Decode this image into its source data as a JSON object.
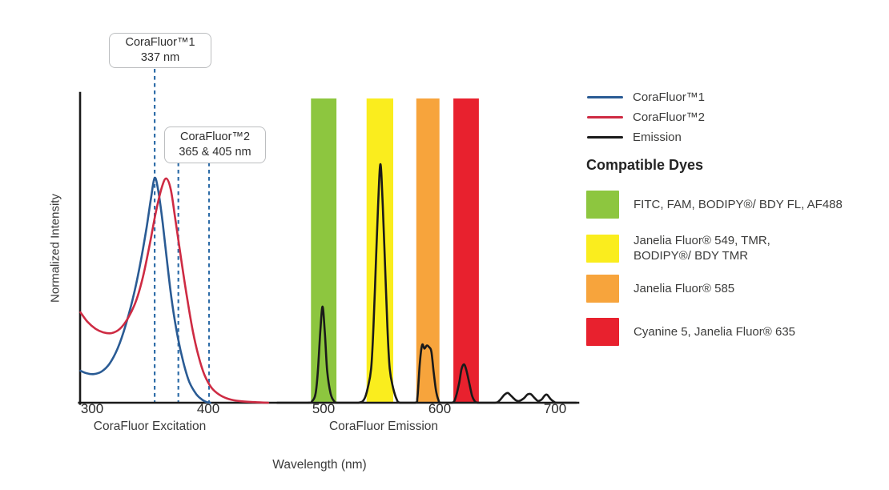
{
  "page": {
    "background": "#ffffff"
  },
  "annotations": {
    "callout1": {
      "line1": "CoraFluor™1",
      "line2": "337 nm"
    },
    "callout2": {
      "line1": "CoraFluor™2",
      "line2": "365 & 405 nm"
    }
  },
  "legend": {
    "items": [
      {
        "label": "CoraFluor™1",
        "color": "#2a5b94"
      },
      {
        "label": "CoraFluor™2",
        "color": "#ce2b43"
      },
      {
        "label": "Emission",
        "color": "#1a1a1a"
      }
    ]
  },
  "compatible_dyes": {
    "heading": "Compatible Dyes",
    "items": [
      {
        "color": "#8dc63f",
        "lines": [
          "FITC, FAM, BODIPY®/ BDY FL, AF488"
        ]
      },
      {
        "color": "#faed1e",
        "lines": [
          "Janelia Fluor® 549, TMR,",
          "BODIPY®/ BDY TMR"
        ]
      },
      {
        "color": "#f7a43c",
        "lines": [
          "Janelia Fluor® 585"
        ]
      },
      {
        "color": "#e8212e",
        "lines": [
          "Cyanine 5, Janelia Fluor® 635"
        ]
      }
    ]
  },
  "chart_data": {
    "type": "line",
    "xlabel": "Wavelength (nm)",
    "ylabel": "Normalized Intensity",
    "x_ticks": [
      300,
      400,
      500,
      600,
      700
    ],
    "xlim": [
      289,
      719
    ],
    "ylim": [
      0,
      1
    ],
    "grid": false,
    "legend_position": "upper right",
    "region_labels": [
      {
        "text": "CoraFluor Excitation",
        "center_nm": 350
      },
      {
        "text": "CoraFluor Emission",
        "center_nm": 552
      }
    ],
    "bands": [
      {
        "name": "green",
        "color": "#8dc63f",
        "range_nm": [
          489,
          511
        ]
      },
      {
        "name": "yellow",
        "color": "#faed1e",
        "range_nm": [
          537,
          560
        ]
      },
      {
        "name": "orange",
        "color": "#f7a43c",
        "range_nm": [
          580,
          600
        ]
      },
      {
        "name": "red",
        "color": "#e8212e",
        "range_nm": [
          612,
          634
        ]
      }
    ],
    "excitation_markers": {
      "labeled_nm": [
        337,
        365,
        405
      ],
      "rendered_nm": [
        354,
        374.5,
        401
      ],
      "color": "#2f6da8"
    },
    "series": [
      {
        "name": "CoraFluor™1",
        "role": "excitation",
        "color": "#2a5b94",
        "points": [
          [
            290,
            0.105
          ],
          [
            295,
            0.097
          ],
          [
            301,
            0.094
          ],
          [
            308,
            0.102
          ],
          [
            315,
            0.128
          ],
          [
            322,
            0.178
          ],
          [
            329,
            0.255
          ],
          [
            336,
            0.355
          ],
          [
            342,
            0.465
          ],
          [
            347,
            0.575
          ],
          [
            351,
            0.675
          ],
          [
            354,
            0.739
          ],
          [
            357,
            0.7
          ],
          [
            361,
            0.59
          ],
          [
            365,
            0.455
          ],
          [
            369,
            0.33
          ],
          [
            374,
            0.215
          ],
          [
            379,
            0.13
          ],
          [
            384,
            0.068
          ],
          [
            390,
            0.028
          ],
          [
            395,
            0.01
          ],
          [
            399,
            0.002
          ],
          [
            402,
            0
          ]
        ]
      },
      {
        "name": "CoraFluor™2",
        "role": "excitation",
        "color": "#ce2b43",
        "points": [
          [
            290,
            0.297
          ],
          [
            296,
            0.266
          ],
          [
            303,
            0.243
          ],
          [
            310,
            0.231
          ],
          [
            317,
            0.229
          ],
          [
            324,
            0.243
          ],
          [
            331,
            0.278
          ],
          [
            338,
            0.335
          ],
          [
            344,
            0.415
          ],
          [
            350,
            0.525
          ],
          [
            355,
            0.625
          ],
          [
            360,
            0.705
          ],
          [
            364,
            0.737
          ],
          [
            368,
            0.7
          ],
          [
            372,
            0.6
          ],
          [
            377,
            0.47
          ],
          [
            382,
            0.345
          ],
          [
            387,
            0.235
          ],
          [
            392,
            0.152
          ],
          [
            397,
            0.092
          ],
          [
            403,
            0.05
          ],
          [
            410,
            0.026
          ],
          [
            418,
            0.012
          ],
          [
            428,
            0.005
          ],
          [
            440,
            0.002
          ],
          [
            452,
            0
          ]
        ]
      },
      {
        "name": "Emission",
        "role": "emission",
        "color": "#1a1a1a",
        "points": [
          [
            460,
            0
          ],
          [
            486,
            0
          ],
          [
            490,
            0.005
          ],
          [
            493,
            0.03
          ],
          [
            495,
            0.105
          ],
          [
            497,
            0.23
          ],
          [
            499,
            0.316
          ],
          [
            501,
            0.23
          ],
          [
            503,
            0.105
          ],
          [
            506,
            0.03
          ],
          [
            509,
            0.005
          ],
          [
            512,
            0
          ],
          [
            530,
            0
          ],
          [
            535,
            0.012
          ],
          [
            538,
            0.048
          ],
          [
            541,
            0.112
          ],
          [
            543,
            0.25
          ],
          [
            545,
            0.45
          ],
          [
            547,
            0.65
          ],
          [
            549,
            0.784
          ],
          [
            551,
            0.65
          ],
          [
            553,
            0.45
          ],
          [
            555,
            0.25
          ],
          [
            557,
            0.112
          ],
          [
            560,
            0.048
          ],
          [
            563,
            0.012
          ],
          [
            566,
            0
          ],
          [
            579,
            0
          ],
          [
            581,
            0.02
          ],
          [
            583,
            0.13
          ],
          [
            585,
            0.19
          ],
          [
            587,
            0.178
          ],
          [
            589,
            0.188
          ],
          [
            591,
            0.183
          ],
          [
            593,
            0.168
          ],
          [
            595,
            0.1
          ],
          [
            597,
            0.04
          ],
          [
            599,
            0.01
          ],
          [
            601,
            0
          ],
          [
            611,
            0
          ],
          [
            614,
            0.018
          ],
          [
            617,
            0.065
          ],
          [
            619,
            0.11
          ],
          [
            621,
            0.126
          ],
          [
            623,
            0.11
          ],
          [
            626,
            0.06
          ],
          [
            628,
            0.025
          ],
          [
            630,
            0.008
          ],
          [
            633,
            0
          ],
          [
            648,
            0
          ],
          [
            652,
            0.008
          ],
          [
            656,
            0.026
          ],
          [
            659,
            0.032
          ],
          [
            662,
            0.022
          ],
          [
            666,
            0.008
          ],
          [
            669,
            0.006
          ],
          [
            673,
            0.015
          ],
          [
            676,
            0.027
          ],
          [
            679,
            0.028
          ],
          [
            682,
            0.016
          ],
          [
            685,
            0.006
          ],
          [
            688,
            0.01
          ],
          [
            691,
            0.024
          ],
          [
            693,
            0.026
          ],
          [
            696,
            0.012
          ],
          [
            699,
            0.003
          ],
          [
            702,
            0
          ],
          [
            718,
            0
          ]
        ]
      }
    ]
  }
}
